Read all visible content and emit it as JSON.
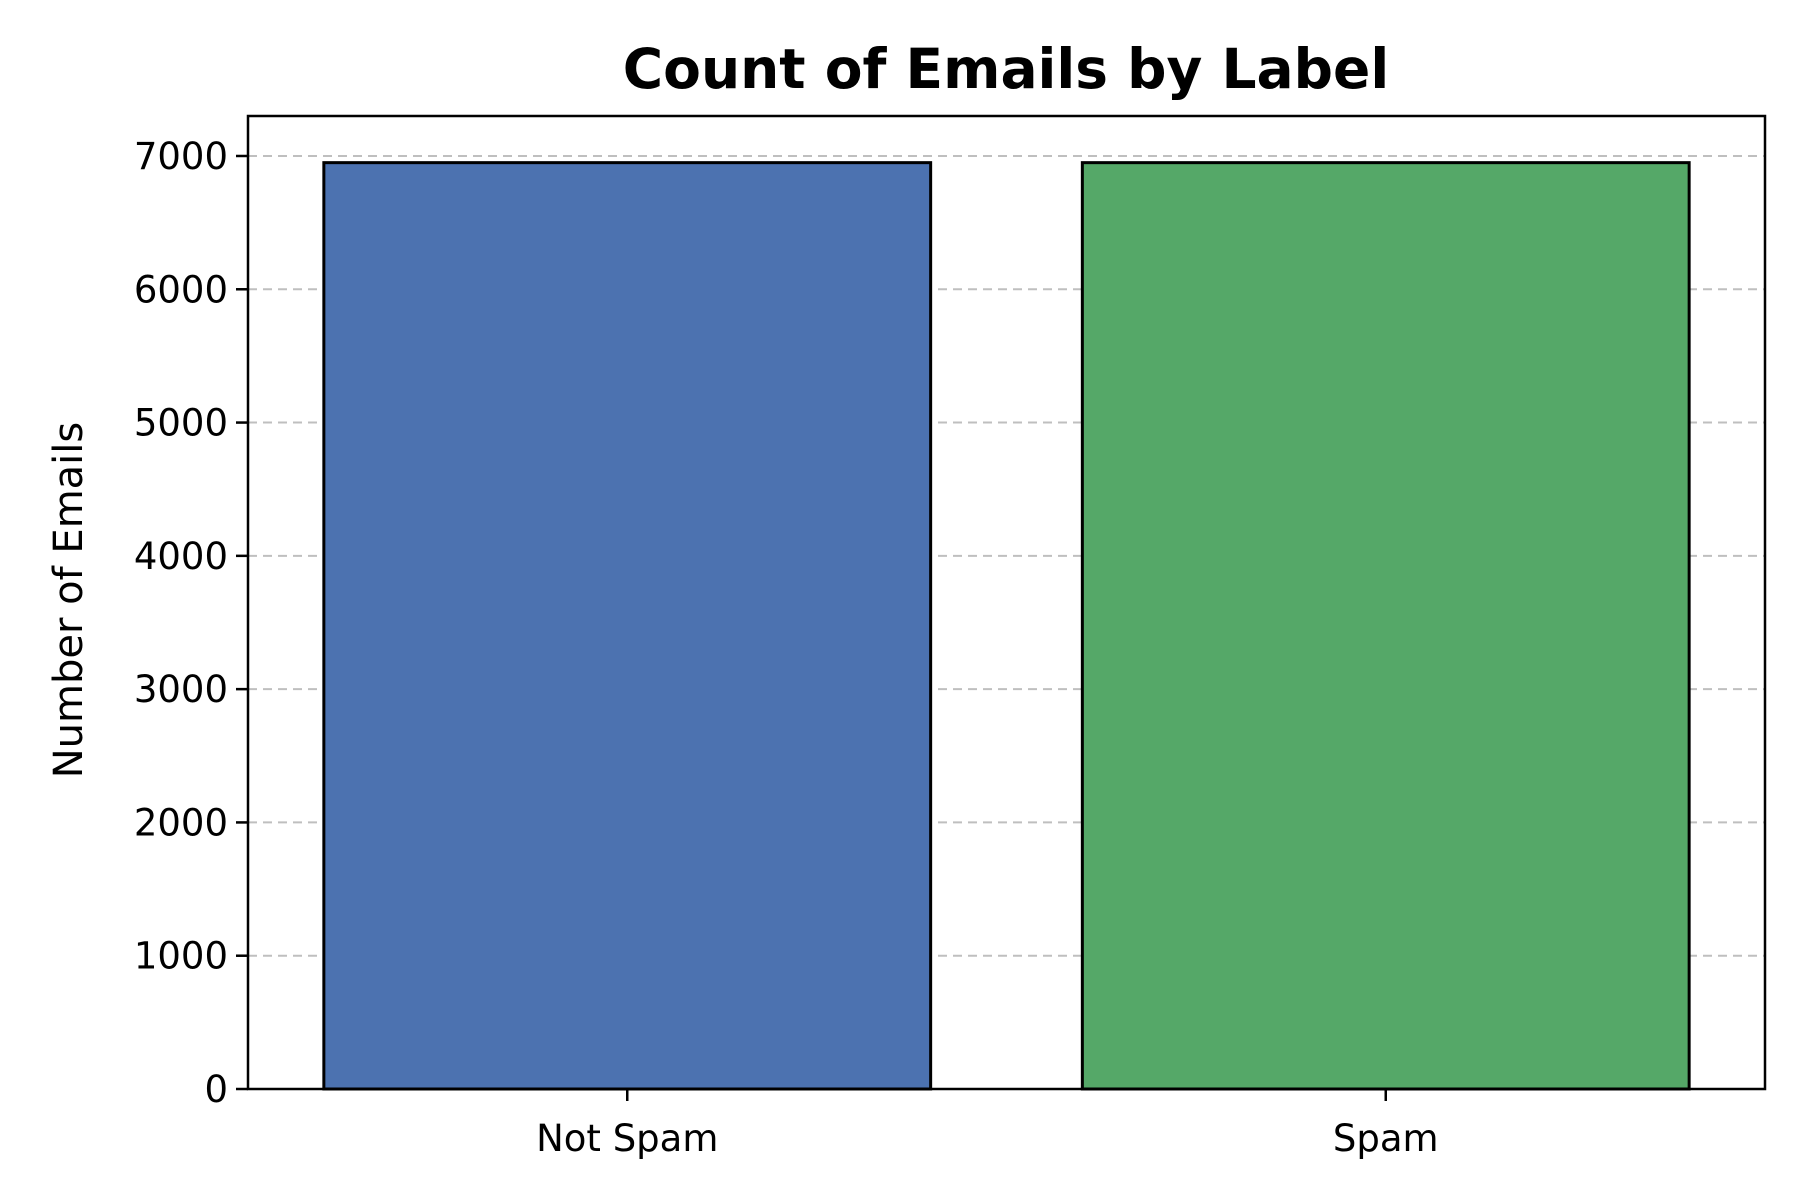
{
  "chart_data": {
    "type": "bar",
    "title": "Count of Emails by Label",
    "xlabel": "",
    "ylabel": "Number of Emails",
    "categories": [
      "Not Spam",
      "Spam"
    ],
    "values": [
      6950,
      6950
    ],
    "colors": [
      "#4c72b0",
      "#55a868"
    ],
    "ylim": [
      0,
      7300
    ],
    "yticks": [
      0,
      1000,
      2000,
      3000,
      4000,
      5000,
      6000,
      7000
    ],
    "ytick_labels": [
      "0",
      "1000",
      "2000",
      "3000",
      "4000",
      "5000",
      "6000",
      "7000"
    ],
    "grid": "y",
    "legend": "none"
  }
}
